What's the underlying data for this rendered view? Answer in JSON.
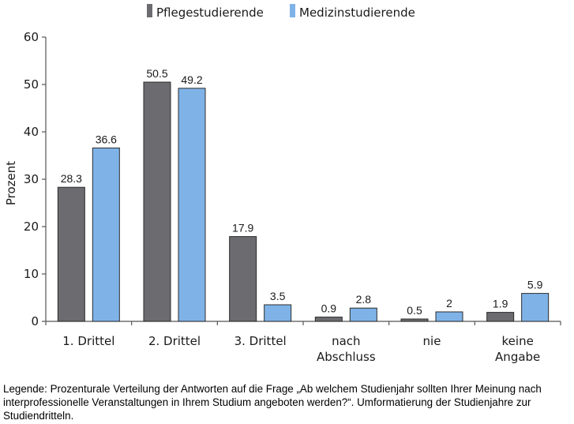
{
  "chart_data": {
    "type": "bar",
    "ylabel": "Prozent",
    "xlabel": "",
    "ylim": [
      0,
      60
    ],
    "yticks": [
      0,
      10,
      20,
      30,
      40,
      50,
      60
    ],
    "grid": false,
    "legend_position": "top-center",
    "categories": [
      [
        "1. Drittel"
      ],
      [
        "2. Drittel"
      ],
      [
        "3. Drittel"
      ],
      [
        "nach",
        "Abschluss"
      ],
      [
        "nie"
      ],
      [
        "keine",
        "Angabe"
      ]
    ],
    "series": [
      {
        "name": "Pflegestudierende",
        "color": "#6b6b70",
        "values": [
          28.3,
          50.5,
          17.9,
          0.9,
          0.5,
          1.9
        ],
        "labels": [
          "28.3",
          "50.5",
          "17.9",
          "0.9",
          "0.5",
          "1.9"
        ]
      },
      {
        "name": "Medizinstudierende",
        "color": "#7fb3e8",
        "values": [
          36.6,
          49.2,
          3.5,
          2.8,
          2,
          5.9
        ],
        "labels": [
          "36.6",
          "49.2",
          "3.5",
          "2.8",
          "2",
          "5.9"
        ]
      }
    ]
  },
  "caption": "Legende: Prozenturale Verteilung der Antworten auf die Frage „Ab welchem Studienjahr sollten Ihrer Meinung nach interprofessionelle Veranstaltungen in Ihrem Studium angeboten werden?“. Umformatierung der Studienjahre zur Studiendritteln."
}
